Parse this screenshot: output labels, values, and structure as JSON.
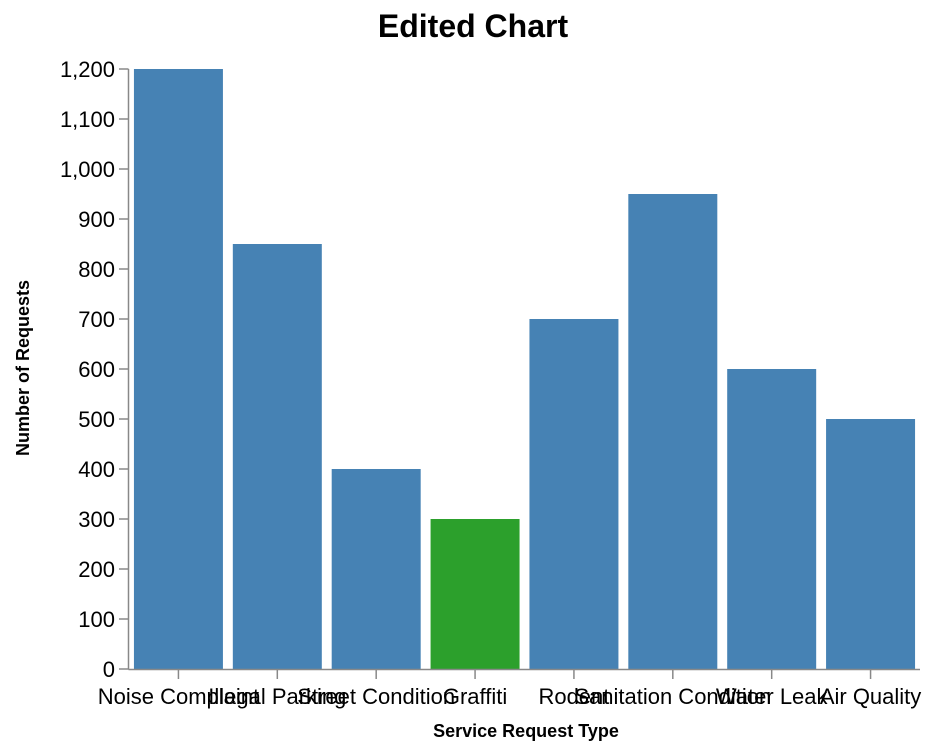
{
  "chart_data": {
    "type": "bar",
    "title": "Edited Chart",
    "xlabel": "Service Request Type",
    "ylabel": "Number of Requests",
    "categories": [
      "Noise Complaint",
      "Illegal Parking",
      "Street Condition",
      "Graffiti",
      "Rodent",
      "Sanitation Condition",
      "Water Leak",
      "Air Quality"
    ],
    "values": [
      1200,
      850,
      400,
      300,
      700,
      950,
      600,
      500
    ],
    "colors": [
      "#4682b4",
      "#4682b4",
      "#4682b4",
      "#2ca02c",
      "#4682b4",
      "#4682b4",
      "#4682b4",
      "#4682b4"
    ],
    "ylim": [
      0,
      1200
    ],
    "yticks": [
      0,
      100,
      200,
      300,
      400,
      500,
      600,
      700,
      800,
      900,
      1000,
      1100,
      1200
    ],
    "ytick_labels": [
      "0",
      "100",
      "200",
      "300",
      "400",
      "500",
      "600",
      "700",
      "800",
      "900",
      "1,000",
      "1,100",
      "1,200"
    ],
    "grid": false,
    "legend": "none"
  }
}
